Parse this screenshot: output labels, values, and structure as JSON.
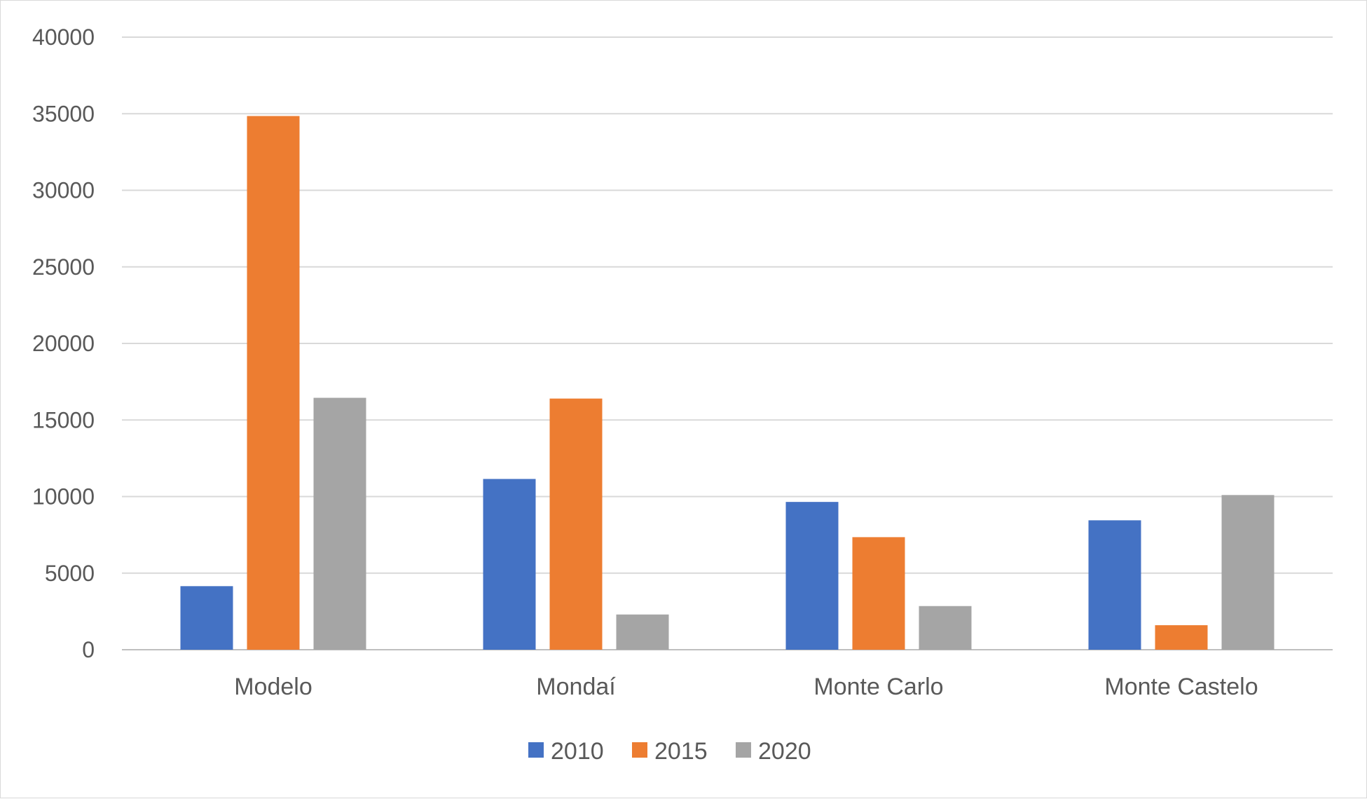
{
  "chart_data": {
    "type": "bar",
    "categories": [
      "Modelo",
      "Mondaí",
      "Monte Carlo",
      "Monte Castelo"
    ],
    "series": [
      {
        "name": "2010",
        "color": "#4472C4",
        "values": [
          4150,
          11150,
          9650,
          8450
        ]
      },
      {
        "name": "2015",
        "color": "#ED7D31",
        "values": [
          34850,
          16400,
          7350,
          1600
        ]
      },
      {
        "name": "2020",
        "color": "#A5A5A5",
        "values": [
          16450,
          2300,
          2850,
          10100
        ]
      }
    ],
    "ylim": [
      0,
      40000
    ],
    "yticks": [
      0,
      5000,
      10000,
      15000,
      20000,
      25000,
      30000,
      35000,
      40000
    ],
    "grid": true,
    "legend_position": "bottom"
  }
}
